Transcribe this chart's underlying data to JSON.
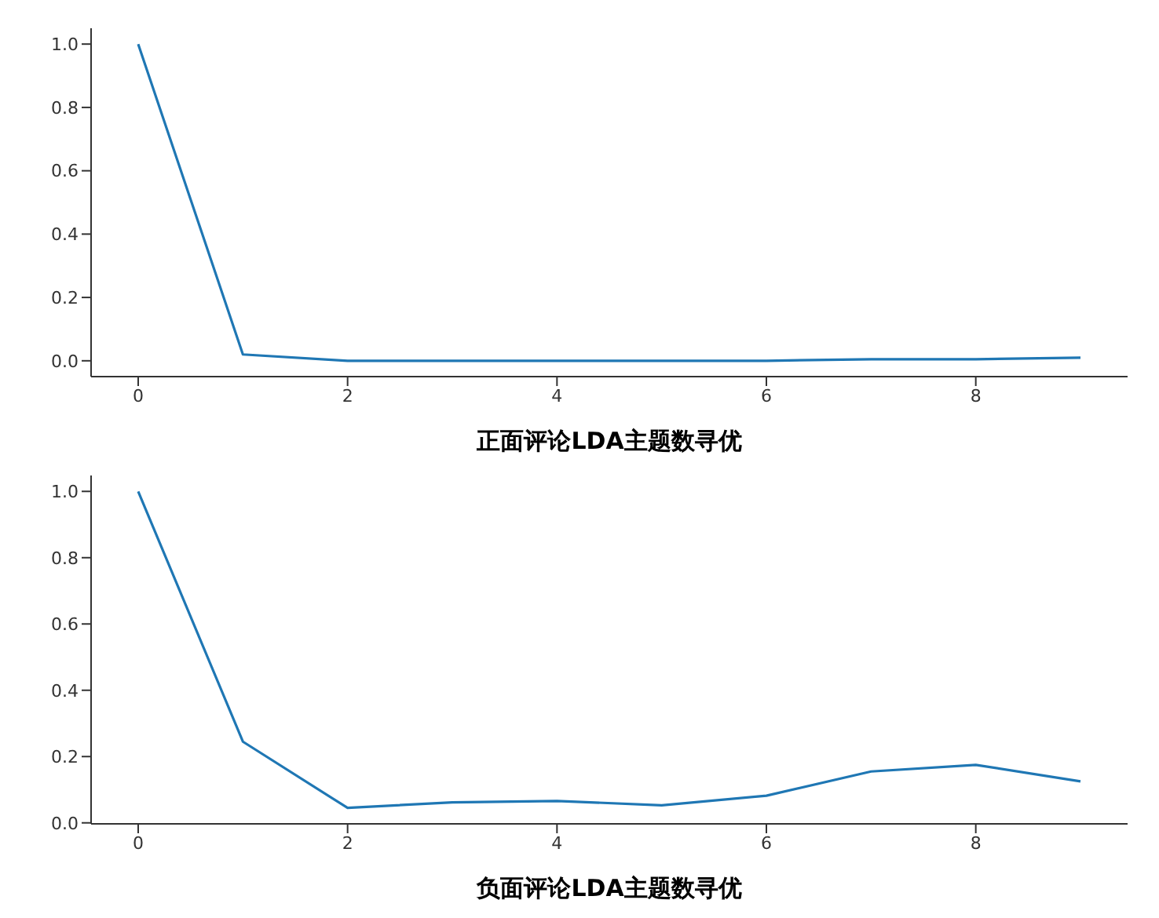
{
  "chart_data": [
    {
      "type": "line",
      "xlabel": "正面评论LDA主题数寻优",
      "x": [
        0,
        1,
        2,
        3,
        4,
        5,
        6,
        7,
        8,
        9
      ],
      "series": [
        {
          "color": "#1f77b4",
          "values": [
            1,
            0.02,
            0,
            0,
            0,
            0,
            0,
            0.005,
            0.005,
            0.01
          ]
        }
      ],
      "xlim": [
        -0.45,
        9.45
      ],
      "xticks": [
        0,
        2,
        4,
        6,
        8
      ],
      "ylim": [
        -0.05,
        1.05
      ],
      "yticks": [
        {
          "value": 0,
          "label": "0.0"
        },
        {
          "value": 0.2,
          "label": "0.2"
        },
        {
          "value": 0.4,
          "label": "0.4"
        },
        {
          "value": 0.6,
          "label": "0.6"
        },
        {
          "value": 0.8,
          "label": "0.8"
        },
        {
          "value": 1,
          "label": "1.0"
        }
      ],
      "grid": false,
      "legend": false,
      "marker": "none"
    },
    {
      "type": "line",
      "xlabel": "负面评论LDA主题数寻优",
      "x": [
        0,
        1,
        2,
        3,
        4,
        5,
        6,
        7,
        8,
        9
      ],
      "series": [
        {
          "color": "#1f77b4",
          "values": [
            1,
            0.245,
            0.045,
            0.062,
            0.066,
            0.053,
            0.082,
            0.155,
            0.175,
            0.125
          ]
        }
      ],
      "xlim": [
        -0.45,
        9.45
      ],
      "xticks": [
        0,
        2,
        4,
        6,
        8
      ],
      "ylim": [
        -0.003,
        1.048
      ],
      "yticks": [
        {
          "value": 0,
          "label": "0.0"
        },
        {
          "value": 0.2,
          "label": "0.2"
        },
        {
          "value": 0.4,
          "label": "0.4"
        },
        {
          "value": 0.6,
          "label": "0.6"
        },
        {
          "value": 0.8,
          "label": "0.8"
        },
        {
          "value": 1,
          "label": "1.0"
        }
      ],
      "grid": false,
      "legend": false,
      "marker": "none"
    }
  ]
}
